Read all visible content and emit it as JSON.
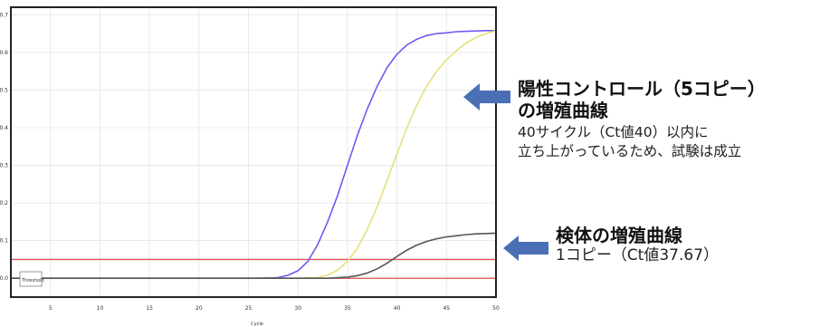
{
  "chart_data": {
    "type": "line",
    "xlabel": "Cycle",
    "ylabel": "",
    "xlim": [
      1,
      50
    ],
    "ylim": [
      -0.005,
      0.072
    ],
    "x_ticks": [
      5,
      10,
      15,
      20,
      25,
      30,
      35,
      40,
      45,
      50
    ],
    "y_ticks": [
      0.0,
      0.01,
      0.02,
      0.03,
      0.04,
      0.05,
      0.06,
      0.07
    ],
    "y_tick_labels": [
      "0.0",
      "0.1",
      "0.2",
      "0.3",
      "0.4",
      "0.5",
      "0.6",
      "0.7"
    ],
    "threshold_label": "Threshold",
    "thresholds": [
      {
        "y": 0.005,
        "color": "#e05050"
      },
      {
        "y": 0.0,
        "color": "#e05050"
      }
    ],
    "grid": true,
    "series": [
      {
        "color": "#6a5cf2",
        "x": [
          1,
          10,
          20,
          26,
          28,
          29,
          30,
          31,
          32,
          33,
          34,
          35,
          36,
          37,
          38,
          39,
          40,
          41,
          42,
          43,
          44,
          45,
          46,
          47,
          48,
          49,
          50
        ],
        "y": [
          0.0,
          0.0,
          0.0,
          0.0,
          0.0002,
          0.0008,
          0.002,
          0.0045,
          0.009,
          0.015,
          0.022,
          0.03,
          0.038,
          0.045,
          0.051,
          0.056,
          0.0595,
          0.062,
          0.0635,
          0.0645,
          0.065,
          0.0652,
          0.0655,
          0.0656,
          0.0657,
          0.0658,
          0.0658
        ]
      },
      {
        "color": "#e6e07a",
        "x": [
          1,
          10,
          20,
          30,
          32,
          33,
          34,
          35,
          36,
          37,
          38,
          39,
          40,
          41,
          42,
          43,
          44,
          45,
          46,
          47,
          48,
          49,
          50
        ],
        "y": [
          0.0,
          0.0,
          0.0,
          0.0,
          0.0002,
          0.0008,
          0.0022,
          0.0045,
          0.008,
          0.013,
          0.019,
          0.026,
          0.033,
          0.04,
          0.046,
          0.051,
          0.055,
          0.058,
          0.0605,
          0.0625,
          0.064,
          0.065,
          0.0658
        ]
      },
      {
        "color": "#555555",
        "x": [
          1,
          10,
          20,
          30,
          33,
          35,
          36,
          37,
          38,
          39,
          40,
          41,
          42,
          43,
          44,
          45,
          46,
          47,
          48,
          49,
          50
        ],
        "y": [
          0.0,
          0.0,
          0.0,
          0.0,
          0.0,
          0.0003,
          0.0007,
          0.0014,
          0.0025,
          0.004,
          0.0058,
          0.0075,
          0.0088,
          0.0098,
          0.0105,
          0.011,
          0.0113,
          0.0116,
          0.0118,
          0.0119,
          0.012
        ]
      }
    ]
  },
  "annotations": {
    "positive": {
      "heading_line1": "陽性コントロール（5コピー）",
      "heading_line2": "の増殖曲線",
      "body_line1": "40サイクル（Ct値40）以内に",
      "body_line2": "立ち上がっているため、試験は成立"
    },
    "sample": {
      "heading": "検体の増殖曲線",
      "body": "1コピー（Ct値37.67）"
    }
  },
  "colors": {
    "arrow": "#4a6fb5",
    "frame": "#222222"
  }
}
